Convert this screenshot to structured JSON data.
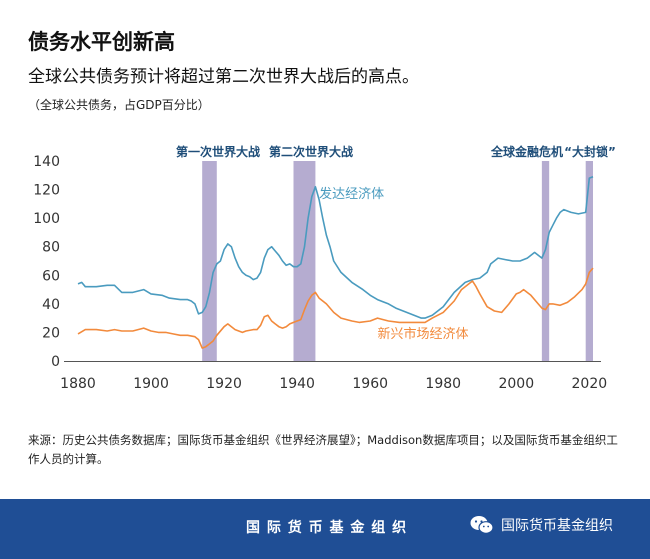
{
  "header": {
    "title": "债务水平创新高",
    "subtitle": "全球公共债务预计将超过第二次世界大战后的高点。",
    "unit": "（全球公共债务，占GDP百分比）"
  },
  "chart_data": {
    "type": "line",
    "xlim": [
      1880,
      2021
    ],
    "ylim": [
      0,
      140
    ],
    "xticks": [
      1880,
      1900,
      1920,
      1940,
      1960,
      1980,
      2000,
      2020
    ],
    "yticks": [
      0,
      20,
      40,
      60,
      80,
      100,
      120,
      140
    ],
    "grid": false,
    "shaded_periods": [
      {
        "label": "第一次世界大战",
        "start": 1914,
        "end": 1918
      },
      {
        "label": "第二次世界大战",
        "start": 1939,
        "end": 1945
      },
      {
        "label": "全球金融危机",
        "start": 2007,
        "end": 2009
      },
      {
        "label": "“大封锁”",
        "start": 2019,
        "end": 2021
      }
    ],
    "series": [
      {
        "name": "发达经济体",
        "color": "#4a9bbf",
        "points": [
          [
            1880,
            54
          ],
          [
            1881,
            55
          ],
          [
            1882,
            52
          ],
          [
            1885,
            52
          ],
          [
            1888,
            53
          ],
          [
            1890,
            53
          ],
          [
            1892,
            48
          ],
          [
            1895,
            48
          ],
          [
            1898,
            50
          ],
          [
            1900,
            47
          ],
          [
            1903,
            46
          ],
          [
            1905,
            44
          ],
          [
            1908,
            43
          ],
          [
            1910,
            43
          ],
          [
            1911,
            42
          ],
          [
            1912,
            40
          ],
          [
            1913,
            33
          ],
          [
            1914,
            34
          ],
          [
            1915,
            38
          ],
          [
            1916,
            48
          ],
          [
            1917,
            62
          ],
          [
            1918,
            68
          ],
          [
            1919,
            70
          ],
          [
            1920,
            78
          ],
          [
            1921,
            82
          ],
          [
            1922,
            80
          ],
          [
            1923,
            72
          ],
          [
            1924,
            66
          ],
          [
            1925,
            62
          ],
          [
            1926,
            60
          ],
          [
            1927,
            59
          ],
          [
            1928,
            57
          ],
          [
            1929,
            58
          ],
          [
            1930,
            62
          ],
          [
            1931,
            72
          ],
          [
            1932,
            78
          ],
          [
            1933,
            80
          ],
          [
            1934,
            77
          ],
          [
            1935,
            74
          ],
          [
            1936,
            70
          ],
          [
            1937,
            67
          ],
          [
            1938,
            68
          ],
          [
            1939,
            66
          ],
          [
            1940,
            66
          ],
          [
            1941,
            68
          ],
          [
            1942,
            80
          ],
          [
            1943,
            100
          ],
          [
            1944,
            115
          ],
          [
            1945,
            122
          ],
          [
            1946,
            113
          ],
          [
            1947,
            100
          ],
          [
            1948,
            88
          ],
          [
            1949,
            80
          ],
          [
            1950,
            70
          ],
          [
            1952,
            62
          ],
          [
            1955,
            55
          ],
          [
            1958,
            50
          ],
          [
            1960,
            46
          ],
          [
            1962,
            43
          ],
          [
            1965,
            40
          ],
          [
            1967,
            37
          ],
          [
            1970,
            34
          ],
          [
            1972,
            32
          ],
          [
            1974,
            30
          ],
          [
            1975,
            30
          ],
          [
            1977,
            32
          ],
          [
            1980,
            38
          ],
          [
            1983,
            48
          ],
          [
            1986,
            55
          ],
          [
            1988,
            57
          ],
          [
            1990,
            58
          ],
          [
            1992,
            62
          ],
          [
            1993,
            68
          ],
          [
            1995,
            72
          ],
          [
            1997,
            71
          ],
          [
            1999,
            70
          ],
          [
            2001,
            70
          ],
          [
            2003,
            72
          ],
          [
            2005,
            76
          ],
          [
            2007,
            72
          ],
          [
            2008,
            78
          ],
          [
            2009,
            90
          ],
          [
            2010,
            95
          ],
          [
            2011,
            100
          ],
          [
            2012,
            104
          ],
          [
            2013,
            106
          ],
          [
            2015,
            104
          ],
          [
            2017,
            103
          ],
          [
            2019,
            104
          ],
          [
            2020,
            128
          ],
          [
            2021,
            129
          ]
        ]
      },
      {
        "name": "新兴市场经济体",
        "color": "#f28a3c",
        "points": [
          [
            1880,
            19
          ],
          [
            1882,
            22
          ],
          [
            1885,
            22
          ],
          [
            1888,
            21
          ],
          [
            1890,
            22
          ],
          [
            1892,
            21
          ],
          [
            1895,
            21
          ],
          [
            1898,
            23
          ],
          [
            1900,
            21
          ],
          [
            1902,
            20
          ],
          [
            1904,
            20
          ],
          [
            1906,
            19
          ],
          [
            1908,
            18
          ],
          [
            1910,
            18
          ],
          [
            1912,
            17
          ],
          [
            1913,
            15
          ],
          [
            1914,
            9
          ],
          [
            1915,
            10
          ],
          [
            1916,
            12
          ],
          [
            1917,
            14
          ],
          [
            1918,
            18
          ],
          [
            1920,
            24
          ],
          [
            1921,
            26
          ],
          [
            1922,
            24
          ],
          [
            1923,
            22
          ],
          [
            1925,
            20
          ],
          [
            1926,
            21
          ],
          [
            1928,
            22
          ],
          [
            1929,
            22
          ],
          [
            1930,
            25
          ],
          [
            1931,
            31
          ],
          [
            1932,
            32
          ],
          [
            1933,
            28
          ],
          [
            1934,
            26
          ],
          [
            1935,
            24
          ],
          [
            1936,
            23
          ],
          [
            1937,
            24
          ],
          [
            1938,
            26
          ],
          [
            1939,
            27
          ],
          [
            1940,
            28
          ],
          [
            1941,
            29
          ],
          [
            1942,
            36
          ],
          [
            1943,
            42
          ],
          [
            1944,
            46
          ],
          [
            1945,
            48
          ],
          [
            1946,
            44
          ],
          [
            1948,
            40
          ],
          [
            1950,
            34
          ],
          [
            1952,
            30
          ],
          [
            1955,
            28
          ],
          [
            1957,
            27
          ],
          [
            1960,
            28
          ],
          [
            1962,
            30
          ],
          [
            1965,
            28
          ],
          [
            1968,
            27
          ],
          [
            1970,
            27
          ],
          [
            1973,
            27
          ],
          [
            1975,
            27
          ],
          [
            1977,
            30
          ],
          [
            1980,
            34
          ],
          [
            1983,
            42
          ],
          [
            1985,
            50
          ],
          [
            1987,
            54
          ],
          [
            1988,
            56
          ],
          [
            1989,
            52
          ],
          [
            1990,
            47
          ],
          [
            1992,
            38
          ],
          [
            1994,
            35
          ],
          [
            1996,
            34
          ],
          [
            1998,
            40
          ],
          [
            2000,
            47
          ],
          [
            2001,
            48
          ],
          [
            2002,
            50
          ],
          [
            2004,
            46
          ],
          [
            2006,
            40
          ],
          [
            2007,
            37
          ],
          [
            2008,
            36
          ],
          [
            2009,
            40
          ],
          [
            2010,
            40
          ],
          [
            2012,
            39
          ],
          [
            2014,
            41
          ],
          [
            2016,
            45
          ],
          [
            2018,
            50
          ],
          [
            2019,
            54
          ],
          [
            2020,
            62
          ],
          [
            2021,
            65
          ]
        ]
      }
    ],
    "annotations": [
      {
        "text": "发达经济体",
        "x": 1946,
        "y": 114,
        "series": 0
      },
      {
        "text": "新兴市场经济体",
        "x": 1962,
        "y": 16,
        "series": 1
      }
    ]
  },
  "source": "来源：历史公共债务数据库；国际货币基金组织《世界经济展望》；Maddison数据库项目；以及国际货币基金组织工作人员的计算。",
  "footer": {
    "org": "国 际 货 币 基 金 组 织",
    "wechat_icon": "wechat-icon",
    "wechat_name": "国际货币基金组织"
  }
}
